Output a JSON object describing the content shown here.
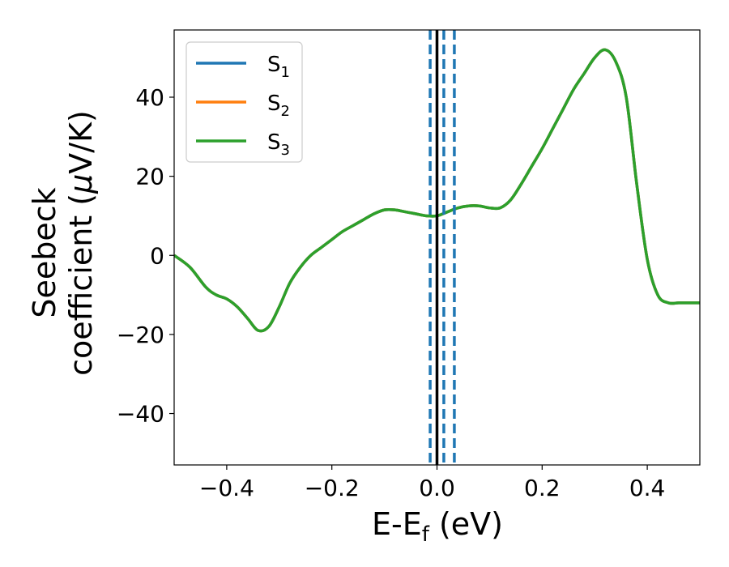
{
  "chart_data": {
    "type": "line",
    "xlabel": {
      "main": "E-E",
      "sub": "f",
      "unit": " (eV)"
    },
    "ylabel": {
      "line1": "Seebeck",
      "line2": "coefficient  (",
      "mu": "μ",
      "line2_end": "V/K)"
    },
    "xlim": [
      -0.5,
      0.5
    ],
    "ylim": [
      -53,
      57
    ],
    "x_ticks": [
      -0.4,
      -0.2,
      0.0,
      0.2,
      0.4
    ],
    "x_tick_labels": [
      "−0.4",
      "−0.2",
      "0.0",
      "0.2",
      "0.4"
    ],
    "y_ticks": [
      -40,
      -20,
      0,
      20,
      40
    ],
    "y_tick_labels": [
      "−40",
      "−20",
      "0",
      "20",
      "40"
    ],
    "legend_position": "top-left",
    "series": [
      {
        "name": "S",
        "sub": "1",
        "color": "#1f77b4"
      },
      {
        "name": "S",
        "sub": "2",
        "color": "#ff7f0e"
      },
      {
        "name": "S",
        "sub": "3",
        "color": "#2ca02c"
      }
    ],
    "curve": {
      "x": [
        -0.5,
        -0.47,
        -0.44,
        -0.42,
        -0.4,
        -0.38,
        -0.36,
        -0.34,
        -0.32,
        -0.3,
        -0.28,
        -0.26,
        -0.24,
        -0.22,
        -0.2,
        -0.18,
        -0.16,
        -0.14,
        -0.12,
        -0.1,
        -0.08,
        -0.06,
        -0.04,
        -0.02,
        0.0,
        0.02,
        0.04,
        0.06,
        0.08,
        0.1,
        0.12,
        0.14,
        0.16,
        0.18,
        0.2,
        0.22,
        0.24,
        0.26,
        0.28,
        0.3,
        0.32,
        0.34,
        0.36,
        0.38,
        0.4,
        0.42,
        0.44,
        0.46,
        0.48,
        0.5
      ],
      "y": [
        0,
        -3,
        -8,
        -10,
        -11,
        -13,
        -16,
        -19,
        -18,
        -13,
        -7,
        -3,
        0,
        2,
        4,
        6,
        7.5,
        9,
        10.5,
        11.5,
        11.5,
        11,
        10.5,
        10,
        10,
        11,
        12,
        12.5,
        12.5,
        12,
        12,
        14,
        18,
        22.5,
        27,
        32,
        37,
        42,
        46,
        50,
        52,
        49,
        40,
        18,
        -1,
        -10,
        -12,
        -12,
        -12,
        -12
      ]
    },
    "vertical_lines": {
      "solid": {
        "x": 0.0,
        "color": "#000000"
      },
      "dashed": {
        "x": [
          -0.013,
          0.013,
          0.033
        ],
        "color": "#1f77b4"
      }
    }
  }
}
